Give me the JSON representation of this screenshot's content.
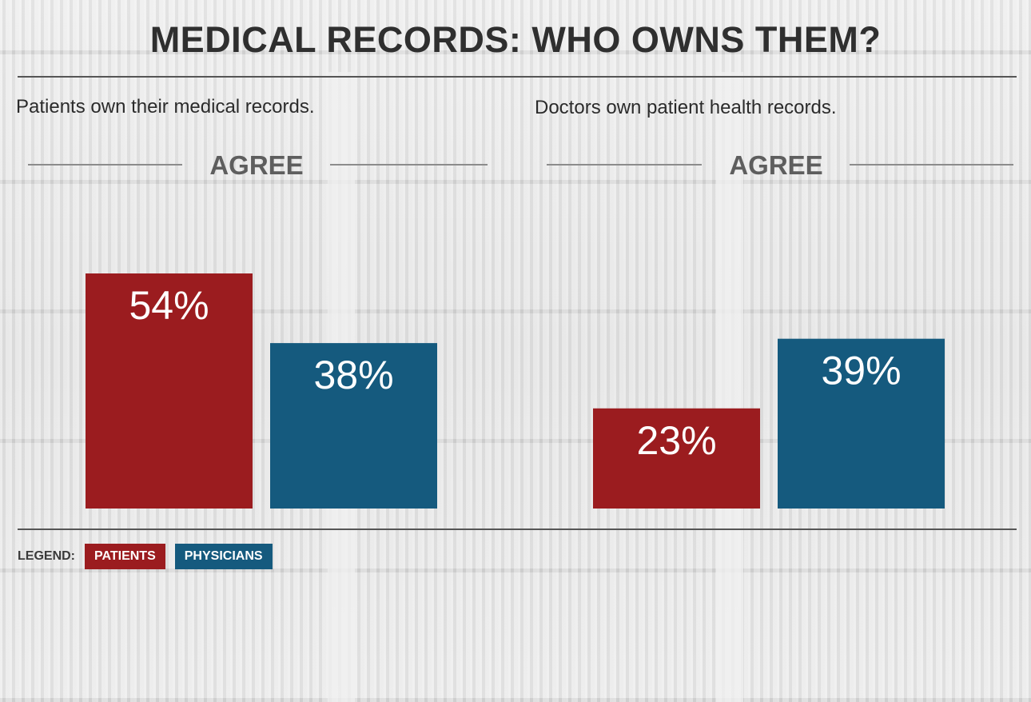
{
  "title": "MEDICAL RECORDS: WHO OWNS THEM?",
  "colors": {
    "patients": "#9b1c1f",
    "physicians": "#155a7e"
  },
  "chart_data": [
    {
      "type": "bar",
      "title": "Patients own their medical records.",
      "subtitle": "AGREE",
      "categories": [
        "PATIENTS",
        "PHYSICIANS"
      ],
      "values": [
        54,
        38
      ],
      "value_labels": [
        "54%",
        "38%"
      ],
      "ylim": [
        0,
        54
      ]
    },
    {
      "type": "bar",
      "title": "Doctors own patient health records.",
      "subtitle": "AGREE",
      "categories": [
        "PATIENTS",
        "PHYSICIANS"
      ],
      "values": [
        23,
        39
      ],
      "value_labels": [
        "23%",
        "39%"
      ],
      "ylim": [
        0,
        54
      ]
    }
  ],
  "legend": {
    "label": "LEGEND:",
    "items": [
      {
        "name": "PATIENTS",
        "color": "#9b1c1f"
      },
      {
        "name": "PHYSICIANS",
        "color": "#155a7e"
      }
    ]
  }
}
